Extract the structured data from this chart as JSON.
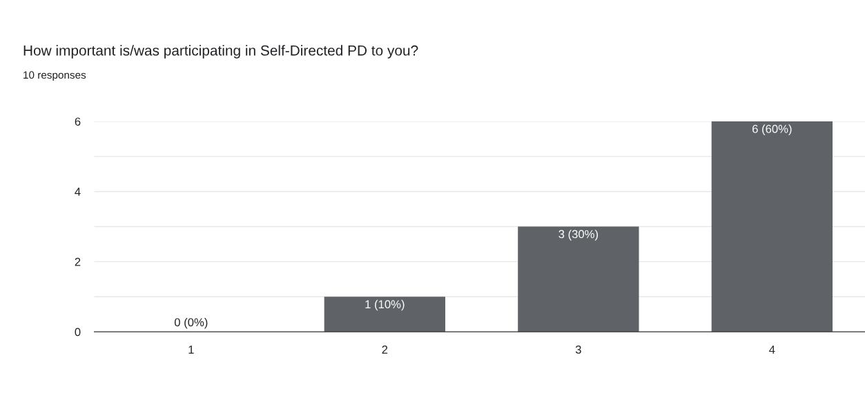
{
  "chart_data": {
    "type": "bar",
    "title": "How important is/was participating in Self-Directed PD to you?",
    "subtitle": "10 responses",
    "categories": [
      "1",
      "2",
      "3",
      "4"
    ],
    "values": [
      0,
      1,
      3,
      6
    ],
    "color": "#5f6368",
    "value_labels": [
      "0 (0%)",
      "1 (10%)",
      "3 (30%)",
      "6 (60%)"
    ],
    "ylim": [
      0,
      6
    ],
    "yticks": [
      0,
      {
        "value": 1,
        "label": null
      },
      2,
      {
        "value": 3,
        "label": null
      },
      4,
      {
        "value": 5,
        "label": null
      },
      6
    ],
    "grid": "y",
    "legend": false
  }
}
